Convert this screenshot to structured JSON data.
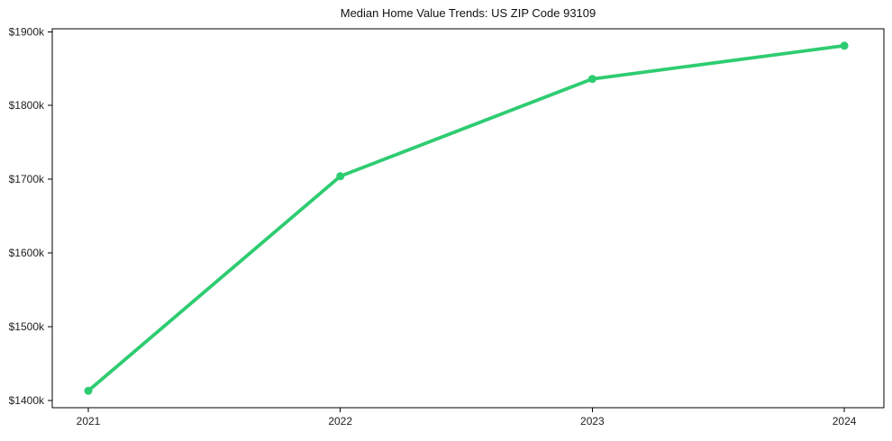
{
  "title": "Median Home Value Trends: US ZIP Code 93109",
  "chart_data": {
    "type": "line",
    "title": "Median Home Value Trends: US ZIP Code 93109",
    "xlabel": "",
    "ylabel": "",
    "x": [
      2021,
      2022,
      2023,
      2024
    ],
    "x_tick_labels": [
      "2021",
      "2022",
      "2023",
      "2024"
    ],
    "series": [
      {
        "name": "Median Home Value",
        "values": [
          1413,
          1704,
          1836,
          1881
        ]
      }
    ],
    "y_tick_values": [
      1400,
      1500,
      1600,
      1700,
      1800,
      1900
    ],
    "y_tick_labels": [
      "$1400k",
      "$1500k",
      "$1600k",
      "$1700k",
      "$1800k",
      "$1900k"
    ],
    "xlim": [
      2020.857,
      2024.157
    ],
    "ylim": [
      1390,
      1904
    ],
    "grid": false,
    "legend": false,
    "marker": "circle",
    "colors": {
      "line": "#2ecc71",
      "marker": "#2ecc71",
      "axis": "#000000",
      "text": "#222222",
      "background": "#ffffff"
    }
  }
}
